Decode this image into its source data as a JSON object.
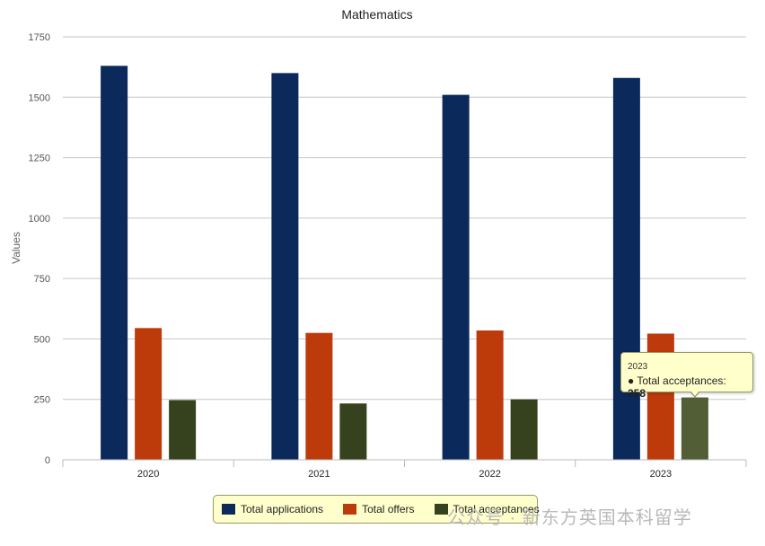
{
  "chart_data": {
    "type": "bar",
    "title": "Mathematics",
    "ylabel": "Values",
    "xlabel": "",
    "categories": [
      "2020",
      "2021",
      "2022",
      "2023"
    ],
    "series": [
      {
        "name": "Total applications",
        "color": "#0b2a5b",
        "values": [
          1630,
          1600,
          1510,
          1580
        ]
      },
      {
        "name": "Total offers",
        "color": "#bd3a0b",
        "values": [
          545,
          525,
          535,
          522
        ]
      },
      {
        "name": "Total acceptances",
        "color": "#36411e",
        "values": [
          247,
          233,
          250,
          258
        ]
      }
    ],
    "ylim": [
      0,
      1750
    ],
    "yticks": [
      0,
      250,
      500,
      750,
      1000,
      1250,
      1500,
      1750
    ],
    "grid": true,
    "legend_position": "bottom"
  },
  "tooltip": {
    "category": "2023",
    "series_label": "● Total acceptances: ",
    "value": "258"
  },
  "watermark": "公众号 · 新东方英国本科留学"
}
